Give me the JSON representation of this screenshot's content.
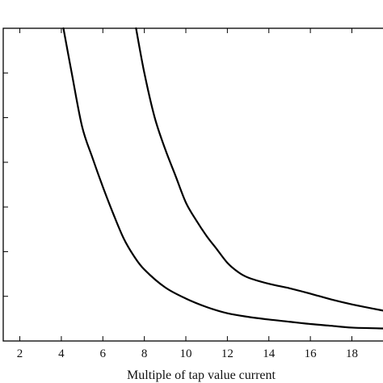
{
  "chart_data": {
    "type": "line",
    "xlabel": "Multiple of tap value current",
    "ylabel": "",
    "title": "",
    "xlim": [
      1.2,
      19.5
    ],
    "ylim": [
      0,
      7
    ],
    "x_ticks": [
      2,
      4,
      6,
      8,
      10,
      12,
      14,
      16,
      18
    ],
    "x_tick_labels": [
      "2",
      "4",
      "6",
      "8",
      "10",
      "12",
      "14",
      "16",
      "18"
    ],
    "y_ticks": [
      1,
      2,
      3,
      4,
      5,
      6
    ],
    "y_tick_labels": [
      "",
      "",
      "",
      "",
      "",
      ""
    ],
    "grid": false,
    "series": [
      {
        "color": "#000000",
        "points": [
          [
            4.1,
            7.0
          ],
          [
            4.5,
            6.0
          ],
          [
            5.0,
            4.8
          ],
          [
            5.5,
            4.1
          ],
          [
            6.0,
            3.45
          ],
          [
            6.5,
            2.85
          ],
          [
            7.0,
            2.3
          ],
          [
            7.5,
            1.9
          ],
          [
            8.0,
            1.6
          ],
          [
            9.0,
            1.2
          ],
          [
            10.0,
            0.95
          ],
          [
            11.0,
            0.76
          ],
          [
            12.0,
            0.62
          ],
          [
            13.0,
            0.54
          ],
          [
            14.0,
            0.48
          ],
          [
            15.0,
            0.43
          ],
          [
            16.0,
            0.38
          ],
          [
            17.0,
            0.34
          ],
          [
            18.0,
            0.3
          ],
          [
            19.5,
            0.28
          ]
        ]
      },
      {
        "color": "#000000",
        "points": [
          [
            7.6,
            7.0
          ],
          [
            8.0,
            6.0
          ],
          [
            8.5,
            5.0
          ],
          [
            9.0,
            4.3
          ],
          [
            9.5,
            3.7
          ],
          [
            10.0,
            3.1
          ],
          [
            10.5,
            2.7
          ],
          [
            11.0,
            2.35
          ],
          [
            11.5,
            2.05
          ],
          [
            12.0,
            1.75
          ],
          [
            12.5,
            1.55
          ],
          [
            13.0,
            1.42
          ],
          [
            14.0,
            1.28
          ],
          [
            15.0,
            1.18
          ],
          [
            16.0,
            1.06
          ],
          [
            17.0,
            0.93
          ],
          [
            18.0,
            0.82
          ],
          [
            19.5,
            0.68
          ]
        ]
      }
    ]
  }
}
